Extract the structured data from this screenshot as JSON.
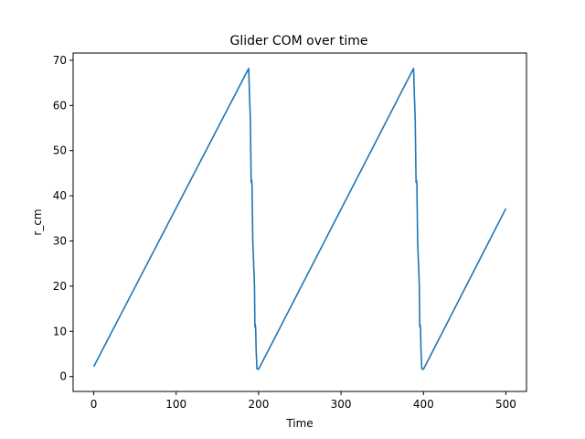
{
  "chart_data": {
    "type": "line",
    "title": "Glider COM over time",
    "xlabel": "Time",
    "ylabel": "r_cm",
    "xlim": [
      -25,
      525
    ],
    "ylim": [
      -3.3,
      71.6
    ],
    "xticks": [
      0,
      100,
      200,
      300,
      400,
      500
    ],
    "yticks": [
      0,
      10,
      20,
      30,
      40,
      50,
      60,
      70
    ],
    "grid": false,
    "legend": "none",
    "series": [
      {
        "color": "#1f77b4",
        "x": [
          0,
          188,
          189,
          190,
          191,
          191.5,
          192,
          193,
          194,
          195,
          195.5,
          196,
          196.5,
          197,
          198,
          200,
          388,
          389,
          390,
          391,
          391.5,
          392,
          393,
          394,
          395,
          395.5,
          396,
          396.5,
          397,
          398,
          400,
          500
        ],
        "y": [
          2.2,
          68.2,
          62,
          57,
          43,
          43.5,
          42.5,
          29.5,
          25,
          20,
          11,
          11.5,
          10.5,
          6,
          1.7,
          1.6,
          68.2,
          62,
          57,
          43,
          43.5,
          42.5,
          29.5,
          25,
          20,
          11,
          11.5,
          10.5,
          6,
          1.7,
          1.6,
          37.2
        ]
      }
    ]
  }
}
